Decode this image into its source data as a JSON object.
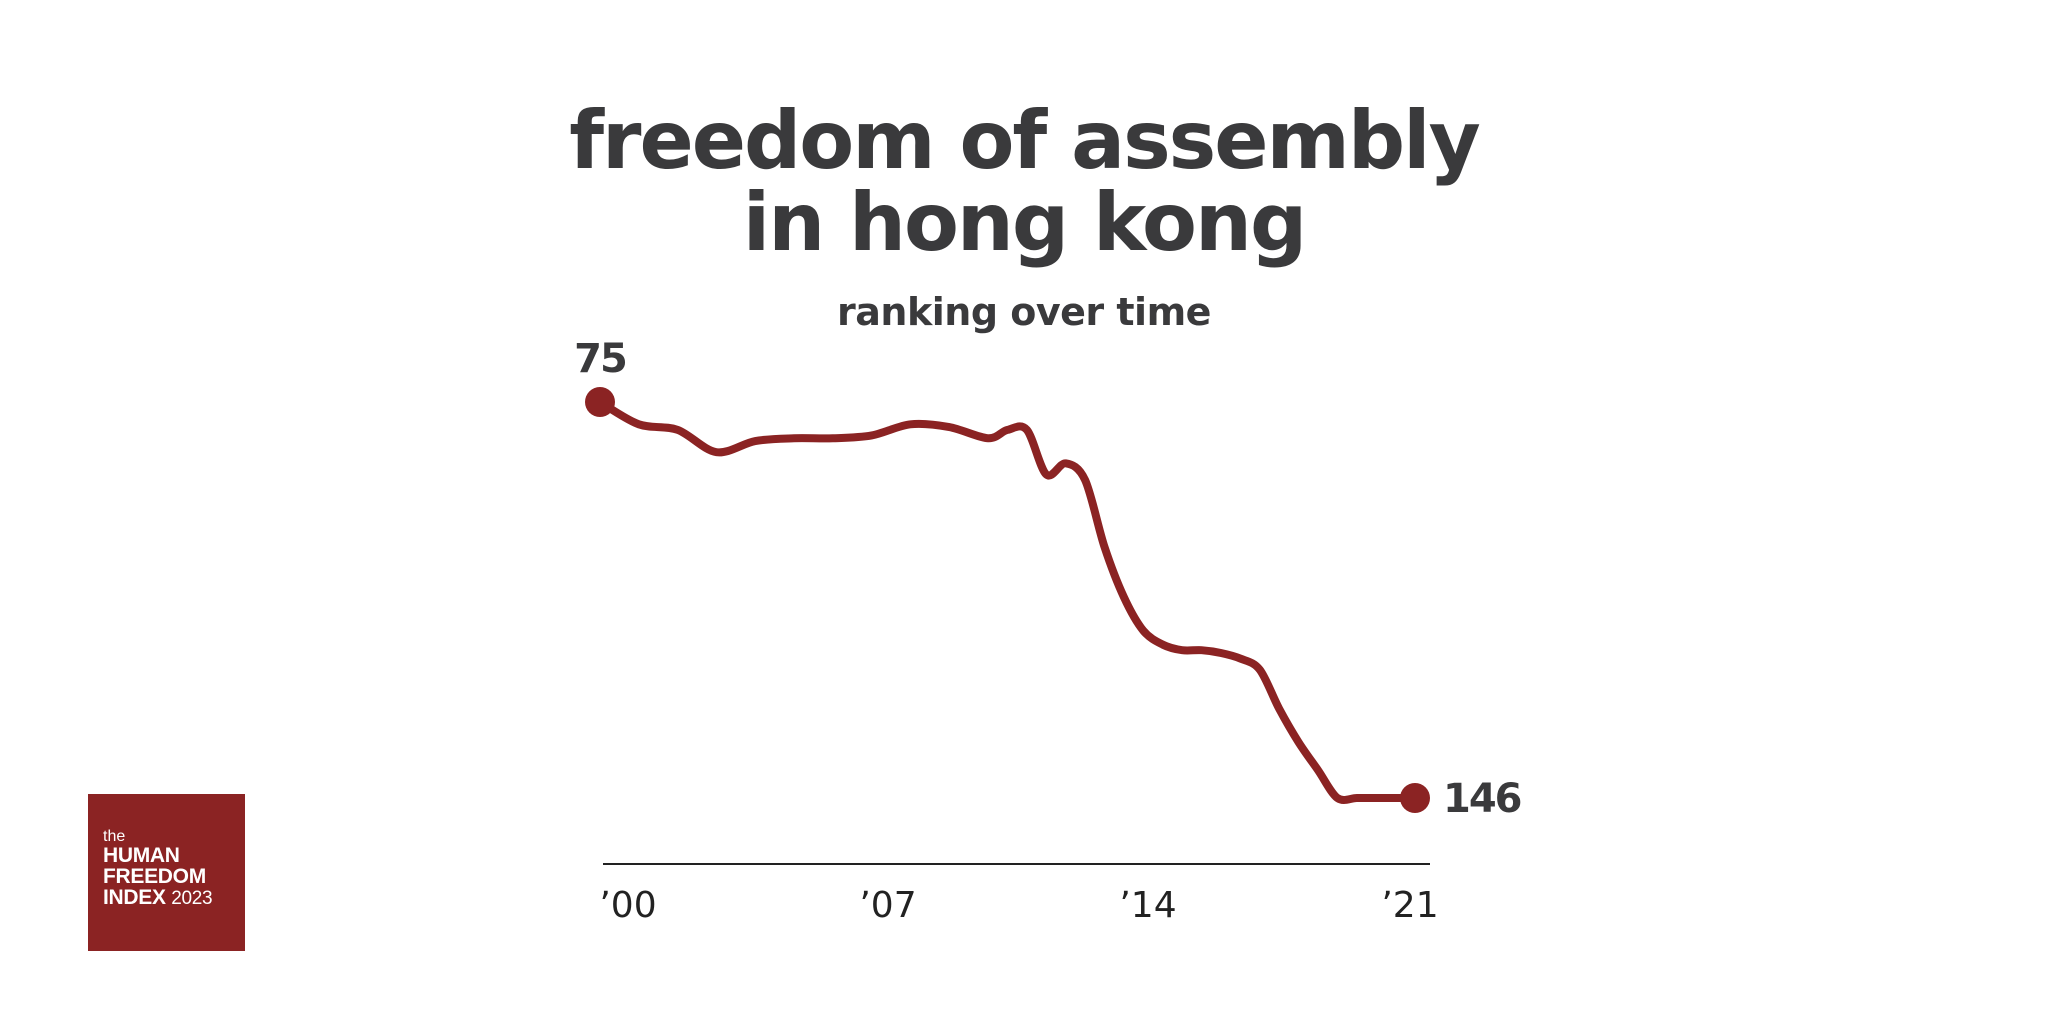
{
  "chart_data": {
    "type": "line",
    "title_lines": [
      "freedom of assembly",
      "in hong kong"
    ],
    "subtitle": "ranking over time",
    "xlabel": "",
    "ylabel": "",
    "x_tick_labels": [
      "’00",
      "’07",
      "’14",
      "’21"
    ],
    "x_ticks": [
      2000,
      2007,
      2014,
      2021
    ],
    "xlim": [
      2000,
      2021
    ],
    "ylim": [
      75,
      146
    ],
    "y_inverted": true,
    "grid": false,
    "legend": "none",
    "series": [
      {
        "color": "#8b2323",
        "x": [
          2000,
          2001,
          2002,
          2003,
          2004,
          2005,
          2006,
          2007,
          2008,
          2009,
          2010,
          2010.5,
          2011,
          2011.5,
          2012,
          2012.5,
          2013,
          2013.5,
          2014,
          2014.5,
          2015,
          2015.5,
          2016,
          2016.5,
          2017,
          2017.5,
          2018,
          2018.5,
          2019,
          2019.5,
          2020,
          2020.5,
          2021
        ],
        "values": [
          75,
          79,
          80,
          84,
          82,
          81.5,
          81.5,
          81,
          79,
          79.5,
          81.5,
          80,
          80,
          88,
          86,
          89,
          101,
          110,
          116,
          118.5,
          119.5,
          119.5,
          120,
          121,
          123,
          130,
          136,
          141,
          146,
          146,
          146,
          146,
          146
        ]
      }
    ],
    "start_label": "75",
    "end_label": "146"
  },
  "logo": {
    "line1": "the",
    "line2": "HUMAN",
    "line3": "FREEDOM",
    "line4": "INDEX",
    "year": "2023"
  },
  "colors": {
    "line": "#8b2323",
    "text": "#3a3a3c",
    "axis": "#222222",
    "logo_bg": "#8b2323"
  }
}
